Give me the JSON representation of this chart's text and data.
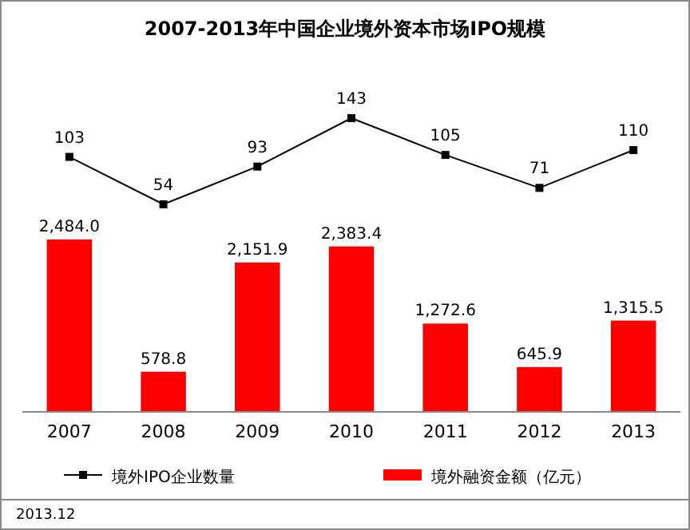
{
  "chart_data": [
    {
      "type": "line",
      "title": "2007-2013年中国企业境外资本市场IPO规模",
      "categories": [
        null,
        null,
        null,
        null,
        null,
        null,
        null
      ],
      "series": [
        {
          "name": "境外IPO企业数量",
          "color": "#000000",
          "values": [
            103,
            54,
            93,
            143,
            105,
            71,
            110
          ],
          "value_labels": [
            "103",
            "54",
            "93",
            "143",
            "105",
            "71",
            "110"
          ]
        }
      ],
      "marker": "square",
      "legend": "bottom"
    },
    {
      "type": "bar",
      "categories": [
        "2007",
        "2008",
        "2009",
        "2010",
        "2011",
        "2012",
        "2013"
      ],
      "series": [
        {
          "name": "境外融资金额（亿元）",
          "color": "#ff0000",
          "values": [
            2484.0,
            578.8,
            2151.9,
            2383.4,
            1272.6,
            645.9,
            1315.5
          ],
          "value_labels": [
            "2,484.0",
            "578.8",
            "2,151.9",
            "2,383.4",
            "1,272.6",
            "645.9",
            "1,315.5"
          ]
        }
      ],
      "legend": "bottom",
      "annotations": [
        "2013.12"
      ]
    }
  ]
}
